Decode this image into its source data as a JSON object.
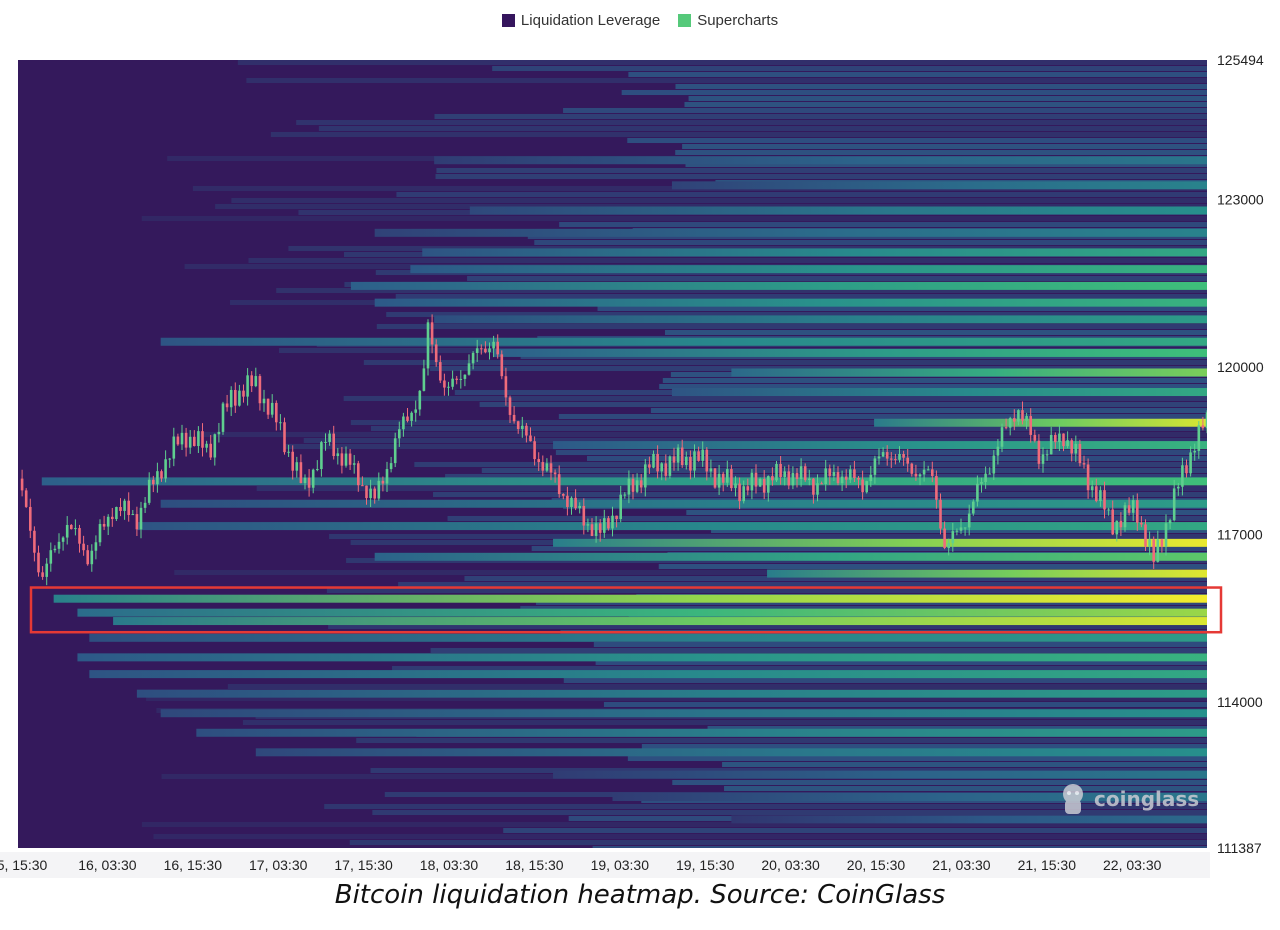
{
  "legend": [
    {
      "label": "Liquidation Leverage",
      "color": "#35155d"
    },
    {
      "label": "Supercharts",
      "color": "#55c97a"
    }
  ],
  "caption": "Bitcoin liquidation heatmap. Source: CoinGlass",
  "watermark": "coinglass",
  "chart_data": {
    "type": "heatmap",
    "title": "",
    "y_range": [
      111387,
      125494
    ],
    "y_ticks": [
      125494,
      123000,
      120000,
      117000,
      114000,
      111387
    ],
    "x_ticks": [
      "5, 15:30",
      "16, 03:30",
      "16, 15:30",
      "17, 03:30",
      "17, 15:30",
      "18, 03:30",
      "18, 15:30",
      "19, 03:30",
      "19, 15:30",
      "20, 03:30",
      "20, 15:30",
      "21, 03:30",
      "21, 15:30",
      "22, 03:30"
    ],
    "colorscale": [
      "#34195c",
      "#2d5c8a",
      "#27908c",
      "#3fbf7a",
      "#b8df37",
      "#fbec2c"
    ],
    "bands": [
      {
        "price": 123700,
        "start": 0.35,
        "level": 0.3
      },
      {
        "price": 123250,
        "start": 0.55,
        "level": 0.35
      },
      {
        "price": 122800,
        "start": 0.38,
        "level": 0.4
      },
      {
        "price": 122400,
        "start": 0.3,
        "level": 0.35
      },
      {
        "price": 122050,
        "start": 0.34,
        "level": 0.5
      },
      {
        "price": 121750,
        "start": 0.33,
        "level": 0.55
      },
      {
        "price": 121450,
        "start": 0.28,
        "level": 0.6
      },
      {
        "price": 121150,
        "start": 0.3,
        "level": 0.55
      },
      {
        "price": 120850,
        "start": 0.35,
        "level": 0.45
      },
      {
        "price": 120450,
        "start": 0.12,
        "level": 0.5
      },
      {
        "price": 120250,
        "start": 0.4,
        "level": 0.6
      },
      {
        "price": 119900,
        "start": 0.6,
        "level": 0.7
      },
      {
        "price": 119550,
        "start": 0.55,
        "level": 0.5
      },
      {
        "price": 119000,
        "start": 0.72,
        "level": 0.9
      },
      {
        "price": 118600,
        "start": 0.45,
        "level": 0.55
      },
      {
        "price": 117950,
        "start": 0.02,
        "level": 0.6
      },
      {
        "price": 117550,
        "start": 0.12,
        "level": 0.45
      },
      {
        "price": 117150,
        "start": 0.1,
        "level": 0.5
      },
      {
        "price": 116850,
        "start": 0.45,
        "level": 0.95
      },
      {
        "price": 116600,
        "start": 0.3,
        "level": 0.65
      },
      {
        "price": 116300,
        "start": 0.63,
        "level": 0.92
      },
      {
        "price": 115850,
        "start": 0.03,
        "level": 0.98
      },
      {
        "price": 115600,
        "start": 0.05,
        "level": 0.75
      },
      {
        "price": 115450,
        "start": 0.08,
        "level": 0.9
      },
      {
        "price": 115150,
        "start": 0.06,
        "level": 0.45
      },
      {
        "price": 114800,
        "start": 0.05,
        "level": 0.55
      },
      {
        "price": 114500,
        "start": 0.06,
        "level": 0.5
      },
      {
        "price": 114150,
        "start": 0.1,
        "level": 0.45
      },
      {
        "price": 113800,
        "start": 0.12,
        "level": 0.4
      },
      {
        "price": 113450,
        "start": 0.15,
        "level": 0.45
      },
      {
        "price": 113100,
        "start": 0.2,
        "level": 0.4
      },
      {
        "price": 112700,
        "start": 0.45,
        "level": 0.3
      },
      {
        "price": 112300,
        "start": 0.5,
        "level": 0.3
      },
      {
        "price": 111900,
        "start": 0.6,
        "level": 0.25
      }
    ],
    "price_path": [
      {
        "x": 0.0,
        "y": 118000
      },
      {
        "x": 0.02,
        "y": 116200
      },
      {
        "x": 0.04,
        "y": 117200
      },
      {
        "x": 0.06,
        "y": 116600
      },
      {
        "x": 0.08,
        "y": 117500
      },
      {
        "x": 0.1,
        "y": 117300
      },
      {
        "x": 0.12,
        "y": 118200
      },
      {
        "x": 0.14,
        "y": 118800
      },
      {
        "x": 0.16,
        "y": 118500
      },
      {
        "x": 0.18,
        "y": 119500
      },
      {
        "x": 0.2,
        "y": 119700
      },
      {
        "x": 0.22,
        "y": 118900
      },
      {
        "x": 0.24,
        "y": 117800
      },
      {
        "x": 0.26,
        "y": 118700
      },
      {
        "x": 0.28,
        "y": 118200
      },
      {
        "x": 0.3,
        "y": 117600
      },
      {
        "x": 0.32,
        "y": 118800
      },
      {
        "x": 0.34,
        "y": 119600
      },
      {
        "x": 0.345,
        "y": 120700
      },
      {
        "x": 0.36,
        "y": 119500
      },
      {
        "x": 0.38,
        "y": 120100
      },
      {
        "x": 0.4,
        "y": 120500
      },
      {
        "x": 0.41,
        "y": 119400
      },
      {
        "x": 0.43,
        "y": 118600
      },
      {
        "x": 0.45,
        "y": 118000
      },
      {
        "x": 0.47,
        "y": 117400
      },
      {
        "x": 0.49,
        "y": 117000
      },
      {
        "x": 0.51,
        "y": 117700
      },
      {
        "x": 0.53,
        "y": 118200
      },
      {
        "x": 0.55,
        "y": 118300
      },
      {
        "x": 0.57,
        "y": 118400
      },
      {
        "x": 0.59,
        "y": 118000
      },
      {
        "x": 0.61,
        "y": 117800
      },
      {
        "x": 0.63,
        "y": 118000
      },
      {
        "x": 0.65,
        "y": 118100
      },
      {
        "x": 0.67,
        "y": 117900
      },
      {
        "x": 0.69,
        "y": 118100
      },
      {
        "x": 0.71,
        "y": 117900
      },
      {
        "x": 0.73,
        "y": 118500
      },
      {
        "x": 0.75,
        "y": 118200
      },
      {
        "x": 0.77,
        "y": 118000
      },
      {
        "x": 0.78,
        "y": 116700
      },
      {
        "x": 0.8,
        "y": 117400
      },
      {
        "x": 0.82,
        "y": 118400
      },
      {
        "x": 0.84,
        "y": 119300
      },
      {
        "x": 0.86,
        "y": 118400
      },
      {
        "x": 0.88,
        "y": 118800
      },
      {
        "x": 0.9,
        "y": 118000
      },
      {
        "x": 0.92,
        "y": 117200
      },
      {
        "x": 0.93,
        "y": 117300
      },
      {
        "x": 0.94,
        "y": 117500
      },
      {
        "x": 0.955,
        "y": 116500
      },
      {
        "x": 0.97,
        "y": 117500
      },
      {
        "x": 0.99,
        "y": 118700
      },
      {
        "x": 1.0,
        "y": 119000
      }
    ],
    "annotation": {
      "type": "highlight-box",
      "y_range": [
        115250,
        116050
      ],
      "color": "#e53935"
    }
  }
}
